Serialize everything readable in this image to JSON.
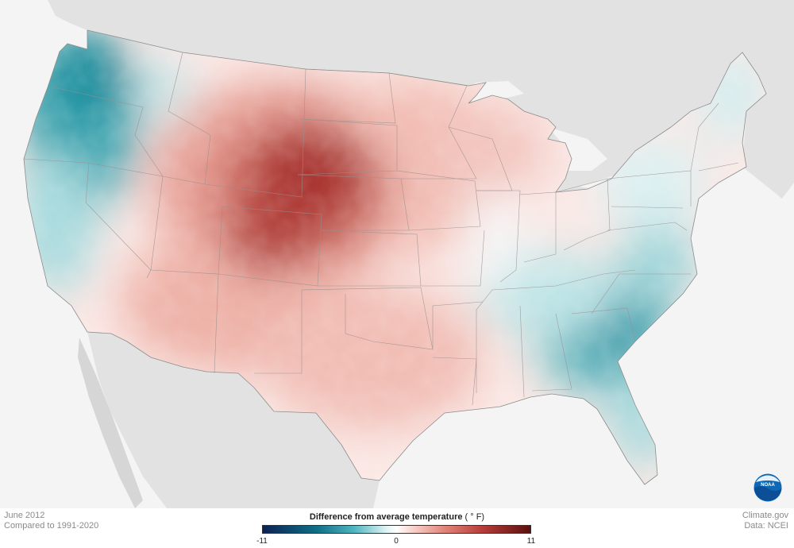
{
  "map": {
    "period": "June 2012",
    "comparison": "Compared to 1991-2020",
    "credit_site": "Climate.gov",
    "credit_data": "Data: NCEI",
    "logo_text": "NOAA"
  },
  "legend": {
    "title": "Difference from average temperature",
    "unit": "(  ° F)",
    "min_label": "-11",
    "mid_label": "0",
    "max_label": "11",
    "range": [
      -11,
      11
    ],
    "colors": {
      "cold_extreme": "#0c2154",
      "cold": "#0e6e86",
      "neutral": "#ffffff",
      "warm": "#e3837a",
      "warm_extreme": "#5a0f0e",
      "land_outside": "#e2e2e2",
      "water": "#f4f4f4"
    }
  }
}
